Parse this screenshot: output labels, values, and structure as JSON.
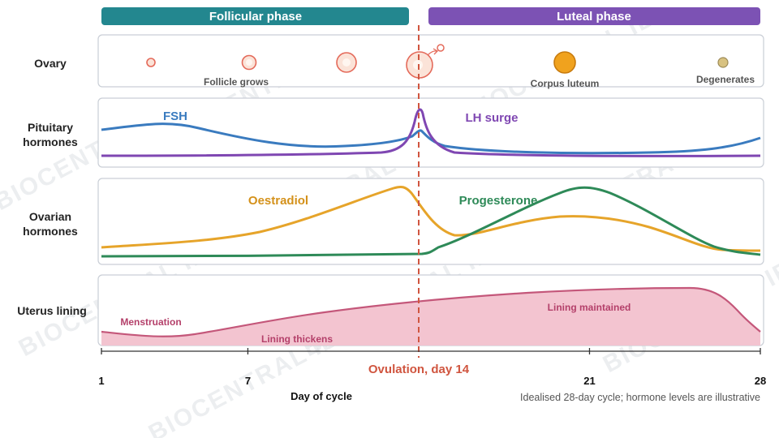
{
  "phases": {
    "follicular": "Follicular phase",
    "luteal": "Luteal phase"
  },
  "rows": {
    "ovary": "Ovary",
    "pituitary": [
      "Pituitary",
      "hormones"
    ],
    "ovarian": [
      "Ovarian",
      "hormones"
    ],
    "uterus": "Uterus lining"
  },
  "ovary_labels": {
    "grows": "Follicle grows",
    "corpus": "Corpus luteum",
    "degenerates": "Degenerates"
  },
  "hormone_labels": {
    "fsh": "FSH",
    "lh": "LH surge",
    "oestradiol": "Oestradiol",
    "progesterone": "Progesterone"
  },
  "uterus_labels": {
    "menstruation": "Menstruation",
    "thickens": "Lining thickens",
    "maintained": "Lining maintained"
  },
  "axis": {
    "ticks": [
      "1",
      "7",
      "21",
      "28"
    ],
    "tick_days": [
      1,
      7,
      21,
      28
    ],
    "xlabel": "Day of cycle",
    "ovulation": "Ovulation, day 14",
    "ovulation_day": 14
  },
  "note": "Idealised 28-day cycle; hormone levels are illustrative",
  "watermark": "BIOCENTRAL IB",
  "colors": {
    "follicular": "#23878f",
    "luteal": "#7c52b4",
    "fsh": "#3a7bbf",
    "lh": "#7f47b2",
    "oestradiol": "#e6a42a",
    "progesterone": "#2e8a58",
    "uterus_line": "#c4577a",
    "uterus_fill": "#f3c4d0",
    "ovulation": "#d0553f",
    "corpus": "#f0a21e",
    "follicle": "#e46a5a"
  }
}
